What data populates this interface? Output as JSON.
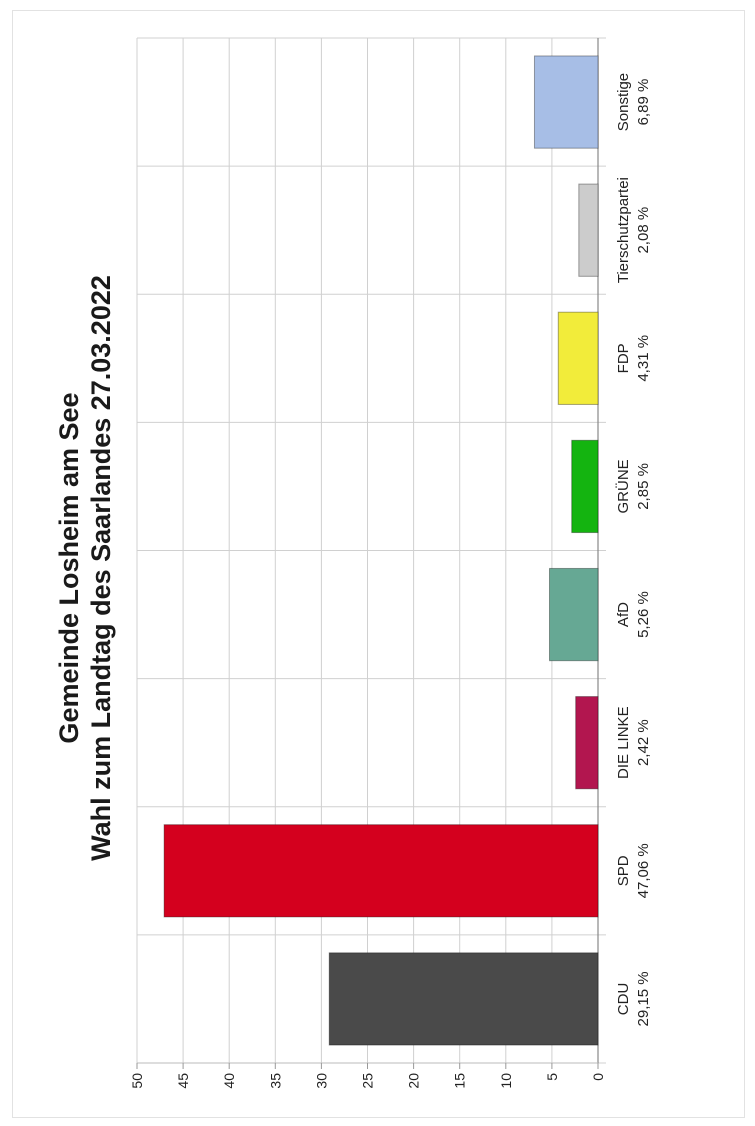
{
  "chart_data": {
    "type": "bar",
    "orientation": "rotated-90-clockwise",
    "title": "Gemeinde Losheim am See",
    "subtitle": "Wahl zum Landtag des Saarlandes 27.03.2022",
    "ylim": [
      0,
      50
    ],
    "yticks": [
      "0",
      "5",
      "10",
      "15",
      "20",
      "25",
      "30",
      "35",
      "40",
      "45",
      "50"
    ],
    "grid": true,
    "bars": [
      {
        "name": "CDU",
        "label": "29,15 %",
        "value": 29.15,
        "color": "#4a4a4a"
      },
      {
        "name": "SPD",
        "label": "47,06 %",
        "value": 47.06,
        "color": "#d4001e"
      },
      {
        "name": "DIE LINKE",
        "label": "2,42 %",
        "value": 2.42,
        "color": "#b2164f"
      },
      {
        "name": "AfD",
        "label": "5,26 %",
        "value": 5.26,
        "color": "#66a894"
      },
      {
        "name": "GRÜNE",
        "label": "2,85 %",
        "value": 2.85,
        "color": "#14b410"
      },
      {
        "name": "FDP",
        "label": "4,31 %",
        "value": 4.31,
        "color": "#f2ec3a"
      },
      {
        "name": "Tierschutzpartei",
        "label": "2,08 %",
        "value": 2.08,
        "color": "#cccccc"
      },
      {
        "name": "Sonstige",
        "label": "6,89 %",
        "value": 6.89,
        "color": "#a7bee6"
      }
    ]
  }
}
